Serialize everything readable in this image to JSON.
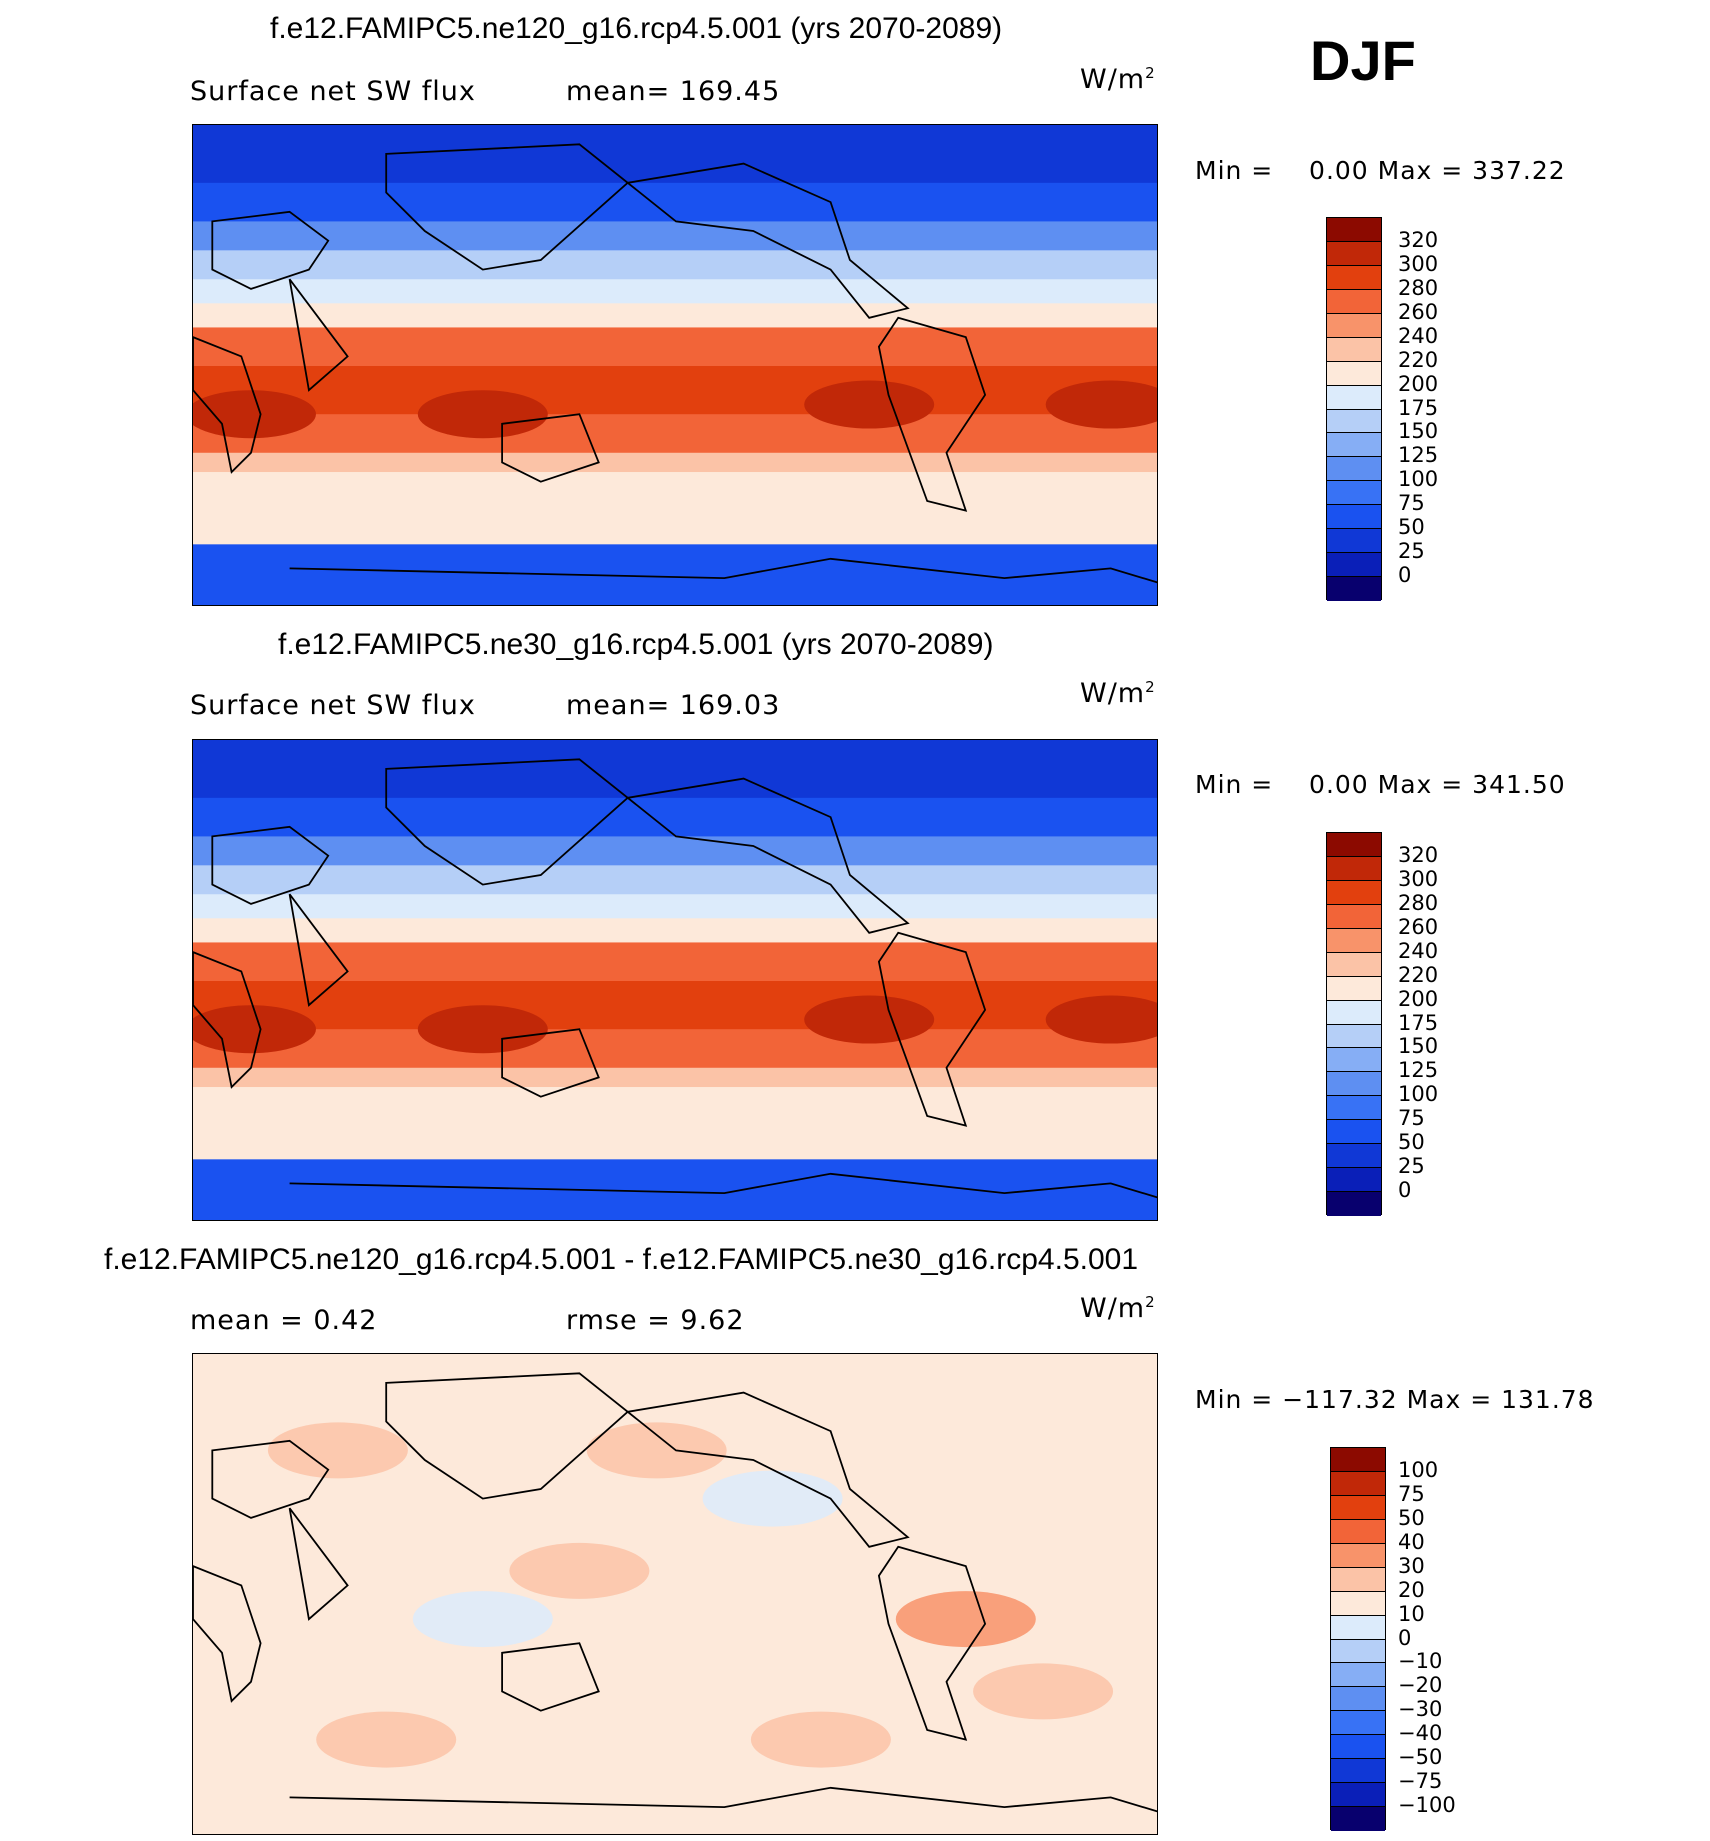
{
  "season": "DJF",
  "panels": [
    {
      "title": "f.e12.FAMIPC5.ne120_g16.rcp4.5.001 (yrs 2070-2089)",
      "left_label": "Surface net SW flux",
      "stat_label": "mean= 169.45",
      "units": "W/m",
      "units_sup": "2",
      "minmax": "Min =    0.00 Max = 337.22",
      "kind": "field"
    },
    {
      "title": "f.e12.FAMIPC5.ne30_g16.rcp4.5.001 (yrs 2070-2089)",
      "left_label": "Surface net SW flux",
      "stat_label": "mean= 169.03",
      "units": "W/m",
      "units_sup": "2",
      "minmax": "Min =    0.00 Max = 341.50",
      "kind": "field"
    },
    {
      "title": "f.e12.FAMIPC5.ne120_g16.rcp4.5.001 - f.e12.FAMIPC5.ne30_g16.rcp4.5.001",
      "left_label": "mean =    0.42",
      "stat_label": "rmse =    9.62",
      "units": "W/m",
      "units_sup": "2",
      "minmax": "Min = −117.32 Max = 131.78",
      "kind": "diff"
    }
  ],
  "chart_data": [
    {
      "type": "heatmap",
      "title": "f.e12.FAMIPC5.ne120_g16.rcp4.5.001 (yrs 2070-2089)",
      "variable": "Surface net SW flux",
      "units": "W/m2",
      "mean": 169.45,
      "min": 0.0,
      "max": 337.22,
      "colorbar_levels": [
        0,
        25,
        50,
        75,
        100,
        125,
        150,
        175,
        200,
        220,
        240,
        260,
        280,
        300,
        320
      ],
      "colorbar_colors": [
        "#08006e",
        "#0a1fb8",
        "#1038d6",
        "#1a52f0",
        "#3872f5",
        "#5e8ff2",
        "#86aef5",
        "#b5cff7",
        "#dcebfb",
        "#fde9da",
        "#fbc3a7",
        "#f8936a",
        "#f26438",
        "#e2400e",
        "#c12808",
        "#8c0a00"
      ]
    },
    {
      "type": "heatmap",
      "title": "f.e12.FAMIPC5.ne30_g16.rcp4.5.001 (yrs 2070-2089)",
      "variable": "Surface net SW flux",
      "units": "W/m2",
      "mean": 169.03,
      "min": 0.0,
      "max": 341.5,
      "colorbar_levels": [
        0,
        25,
        50,
        75,
        100,
        125,
        150,
        175,
        200,
        220,
        240,
        260,
        280,
        300,
        320
      ],
      "colorbar_colors": [
        "#08006e",
        "#0a1fb8",
        "#1038d6",
        "#1a52f0",
        "#3872f5",
        "#5e8ff2",
        "#86aef5",
        "#b5cff7",
        "#dcebfb",
        "#fde9da",
        "#fbc3a7",
        "#f8936a",
        "#f26438",
        "#e2400e",
        "#c12808",
        "#8c0a00"
      ]
    },
    {
      "type": "heatmap",
      "title": "f.e12.FAMIPC5.ne120_g16.rcp4.5.001 - f.e12.FAMIPC5.ne30_g16.rcp4.5.001",
      "units": "W/m2",
      "mean": 0.42,
      "rmse": 9.62,
      "min": -117.32,
      "max": 131.78,
      "colorbar_levels": [
        -100,
        -75,
        -50,
        -40,
        -30,
        -20,
        -10,
        0,
        10,
        20,
        30,
        40,
        50,
        75,
        100
      ],
      "colorbar_colors": [
        "#08006e",
        "#0a1fb8",
        "#1038d6",
        "#1a52f0",
        "#3872f5",
        "#5e8ff2",
        "#86aef5",
        "#b5cff7",
        "#dcebfb",
        "#fde9da",
        "#fbc3a7",
        "#f8936a",
        "#f26438",
        "#e2400e",
        "#c12808",
        "#8c0a00"
      ]
    }
  ]
}
